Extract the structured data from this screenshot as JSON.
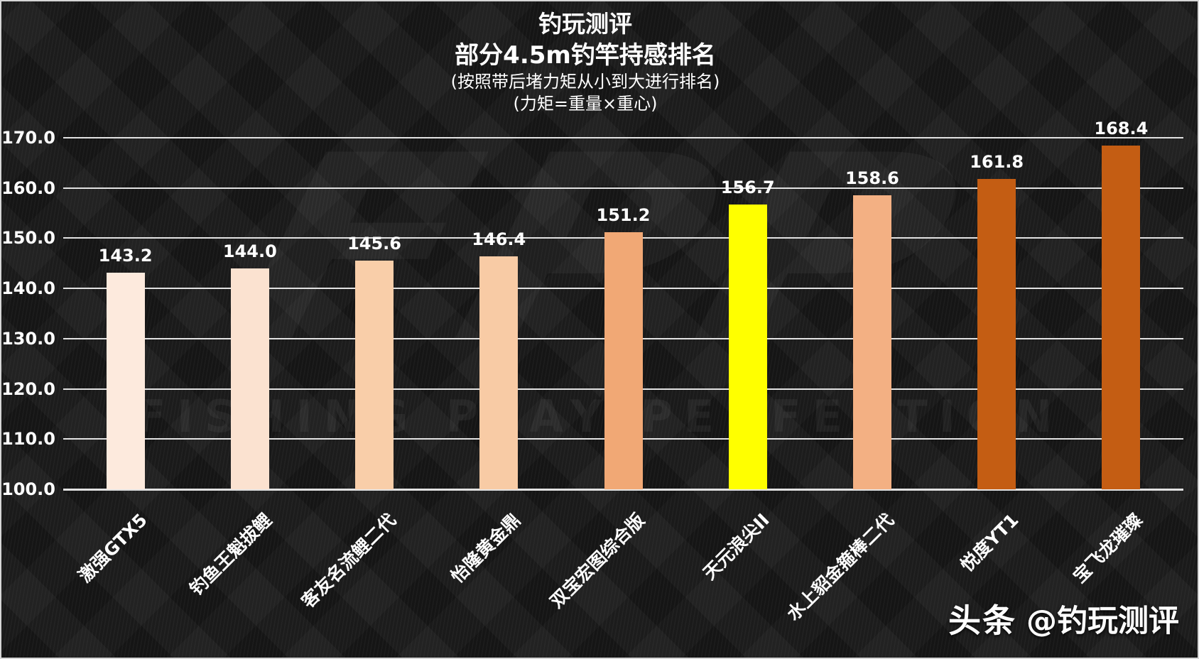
{
  "header": {
    "title": "钓玩测评",
    "subtitle": "部分4.5m钓竿持感排名",
    "note1": "(按照带后堵力矩从小到大进行排名)",
    "note2": "(力矩=重量×重心)"
  },
  "chart_data": {
    "type": "bar",
    "title": "钓玩测评 部分4.5m钓竿持感排名",
    "subtitle_notes": [
      "(按照带后堵力矩从小到大进行排名)",
      "(力矩=重量×重心)"
    ],
    "categories": [
      "激强GTX5",
      "钓鱼王魁拔鲤",
      "客友名流鲤二代",
      "怡隆黄金鼎",
      "双宝宏图综合版",
      "天元浪尖II",
      "水上貂金箍棒二代",
      "悦度YT1",
      "宝飞龙璀璨"
    ],
    "values": [
      143.2,
      144.0,
      145.6,
      146.4,
      151.2,
      156.7,
      158.6,
      161.8,
      168.4
    ],
    "value_labels": [
      "143.2",
      "144.0",
      "145.6",
      "146.4",
      "151.2",
      "156.7",
      "158.6",
      "161.8",
      "168.4"
    ],
    "bar_colors": [
      "#fdeadd",
      "#fbe2d0",
      "#f9cea9",
      "#f8cba5",
      "#f1a875",
      "#ffff00",
      "#f3b083",
      "#c45d13",
      "#c45d13"
    ],
    "highlight_index": 5,
    "highlight_color": "#ffff00",
    "ylim": [
      100,
      170
    ],
    "ytick_labels": [
      "100.0",
      "110.0",
      "120.0",
      "130.0",
      "140.0",
      "150.0",
      "160.0",
      "170.0"
    ],
    "grid": true,
    "gridline_color": "#e2e2e2",
    "legend": false,
    "xlabel": "",
    "ylabel": ""
  },
  "watermark": {
    "logo": "FPP",
    "tagline": "FISHING PLAY PERFECTION"
  },
  "footer": {
    "brand": "头条",
    "handle": "@钓玩测评"
  }
}
